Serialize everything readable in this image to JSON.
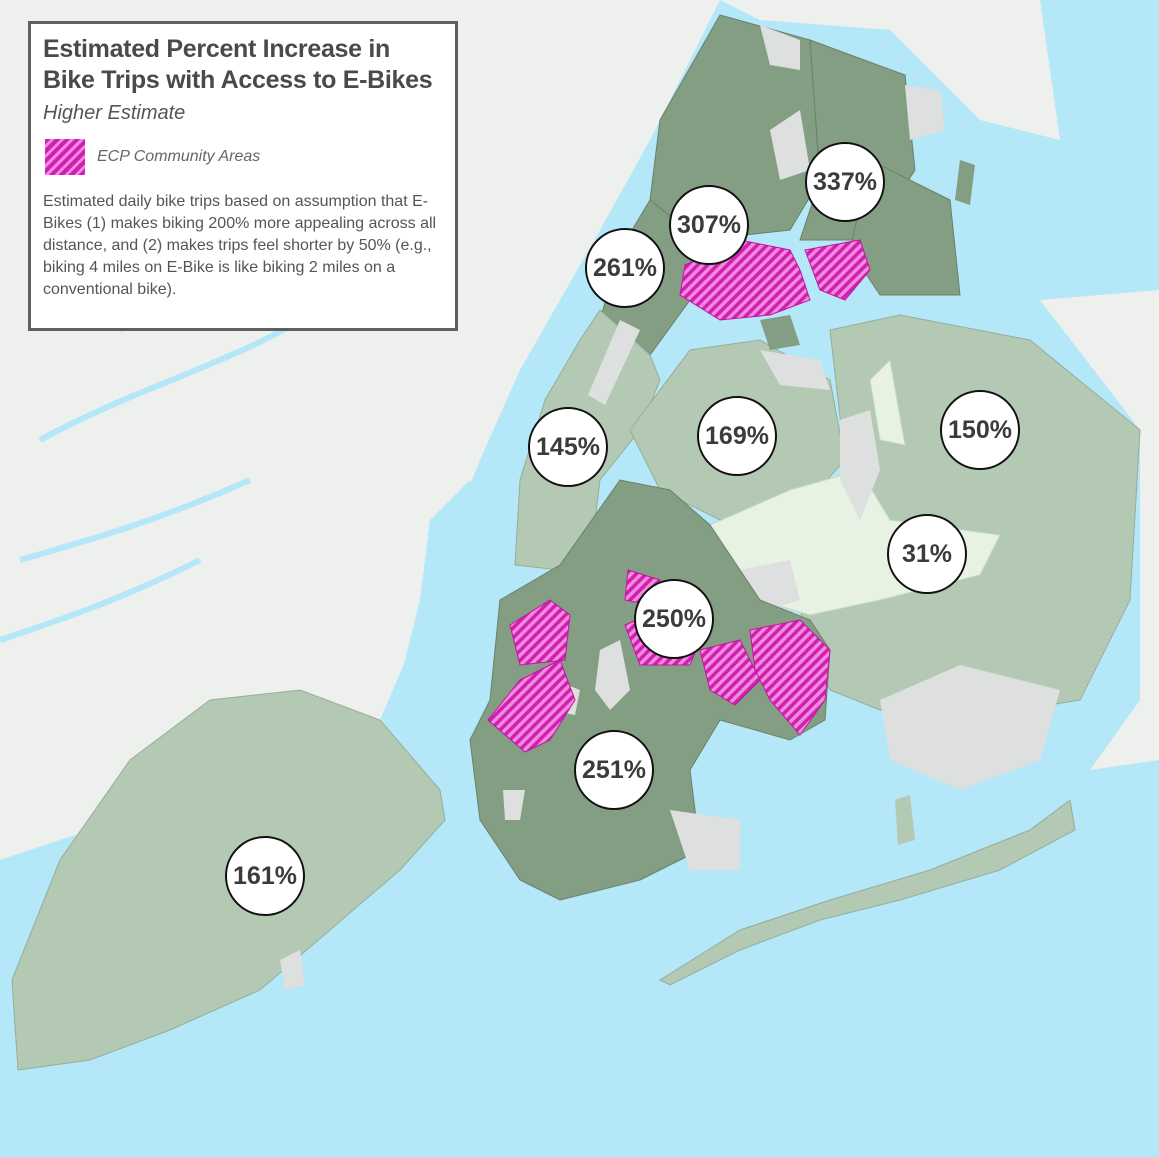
{
  "legend": {
    "title_line1": "Estimated Percent Increase in",
    "title_line2": "Bike Trips with Access to E-Bikes",
    "subtitle": "Higher Estimate",
    "key_label": "ECP Community Areas",
    "note": "Estimated daily bike trips based on assumption that E-Bikes (1) makes biking 200% more appealing across all distance, and (2) makes trips feel shorter by 50% (e.g., biking 4 miles on E-Bike is like biking 2 miles on a conventional bike)."
  },
  "labels": [
    {
      "id": "bronx-east",
      "value": "337%"
    },
    {
      "id": "bronx-central",
      "value": "307%"
    },
    {
      "id": "bronx-west",
      "value": "261%"
    },
    {
      "id": "manhattan",
      "value": "145%"
    },
    {
      "id": "queens-west",
      "value": "169%"
    },
    {
      "id": "queens-north",
      "value": "150%"
    },
    {
      "id": "queens-central",
      "value": "31%"
    },
    {
      "id": "brooklyn-north",
      "value": "250%"
    },
    {
      "id": "brooklyn-south",
      "value": "251%"
    },
    {
      "id": "staten-island",
      "value": "161%"
    }
  ],
  "colors": {
    "water": "#b4e7f8",
    "land_outside": "#eef0ee",
    "high": "#839e83",
    "medium": "#b3c9b3",
    "low": "#e7f2e3",
    "no_data": "#dedfdf",
    "ecp_hatch": "#d01fb2"
  }
}
